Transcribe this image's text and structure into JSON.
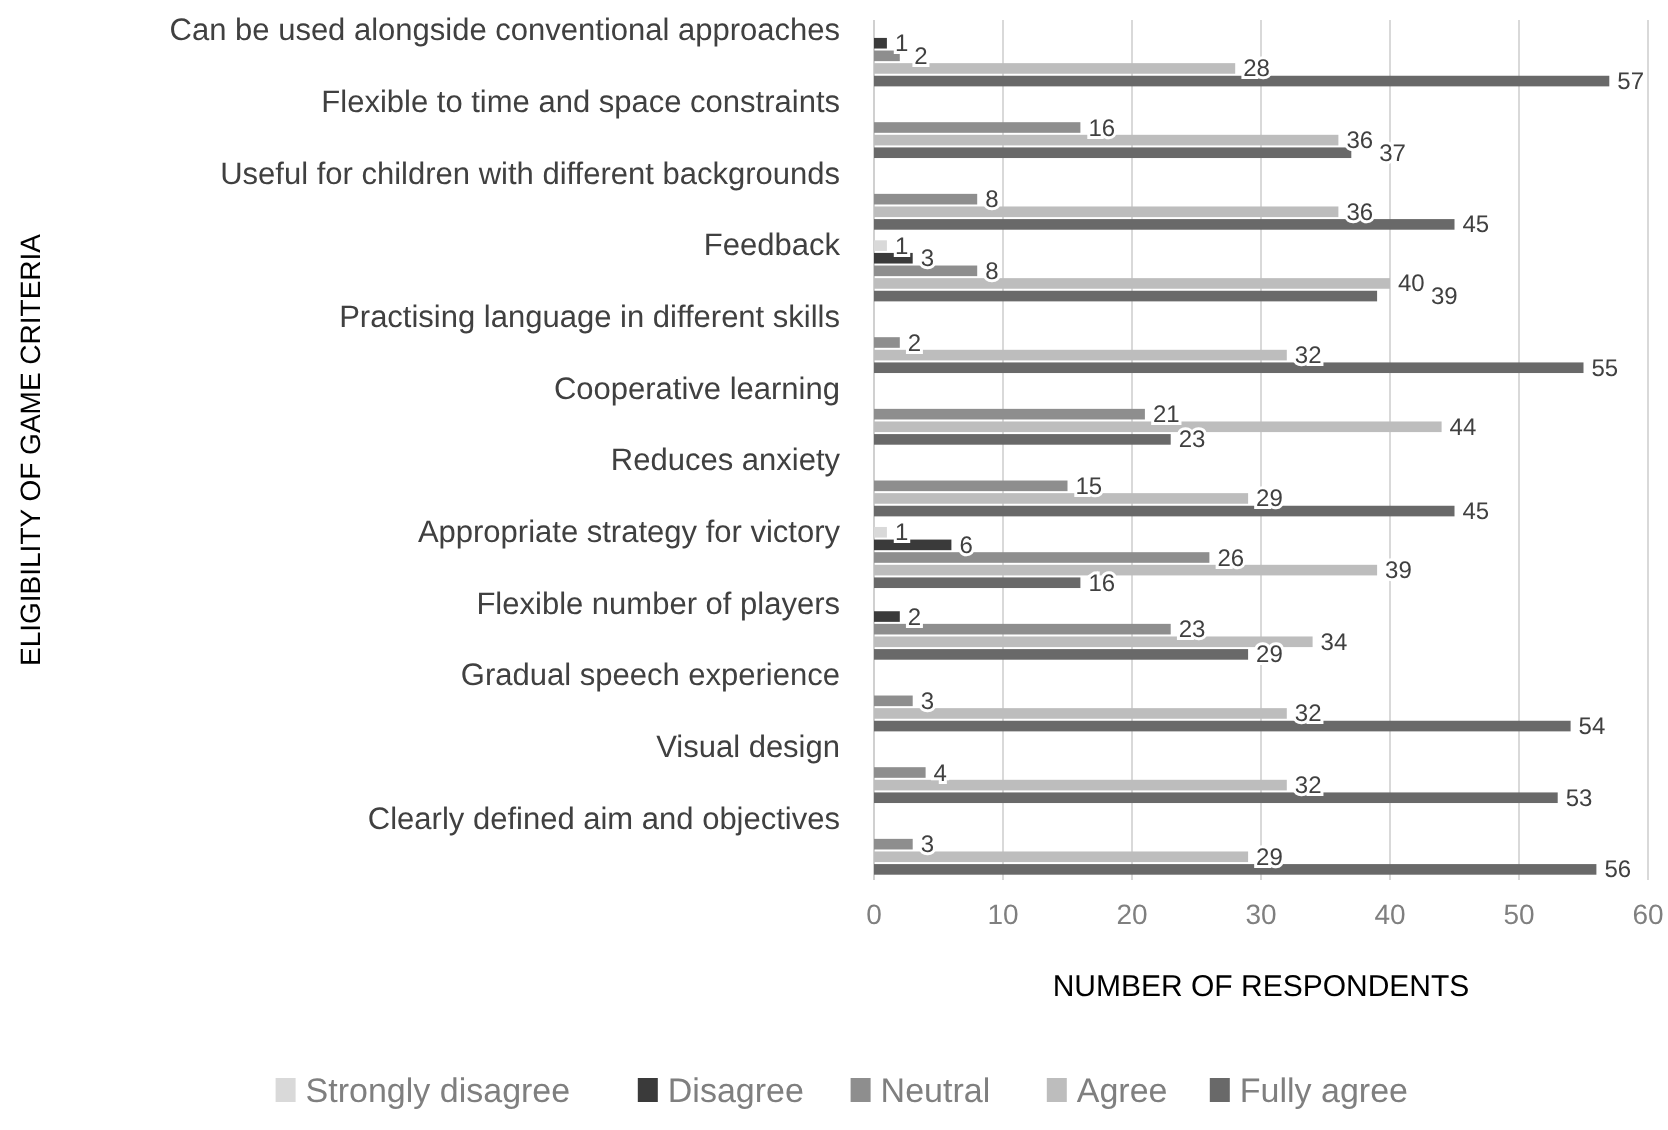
{
  "chart_data": {
    "type": "bar",
    "orientation": "horizontal",
    "xlabel": "NUMBER OF RESPONDENTS",
    "ylabel": "ELIGIBILITY OF GAME CRITERIA",
    "categories": [
      "Can be used alongside conventional approaches",
      "Flexible to time and space constraints",
      "Useful for children with different backgrounds",
      "Feedback",
      "Practising language in different skills",
      "Cooperative learning",
      "Reduces anxiety",
      "Appropriate strategy for victory",
      "Flexible number of players",
      "Gradual speech experience",
      "Visual design",
      "Clearly defined aim and objectives"
    ],
    "series": [
      {
        "name": "Strongly disagree",
        "color": "#d9d9d9",
        "values": [
          null,
          null,
          null,
          1,
          null,
          null,
          null,
          1,
          null,
          null,
          null,
          null
        ]
      },
      {
        "name": "Disagree",
        "color": "#3a3a3a",
        "values": [
          1,
          null,
          null,
          3,
          null,
          null,
          null,
          6,
          2,
          null,
          null,
          null
        ]
      },
      {
        "name": "Neutral",
        "color": "#8e8e8e",
        "values": [
          2,
          16,
          8,
          8,
          2,
          21,
          15,
          26,
          23,
          3,
          4,
          3
        ]
      },
      {
        "name": "Agree",
        "color": "#bdbdbd",
        "values": [
          28,
          36,
          36,
          40,
          32,
          44,
          29,
          39,
          34,
          32,
          32,
          29
        ]
      },
      {
        "name": "Fully agree",
        "color": "#696969",
        "values": [
          57,
          37,
          45,
          39,
          55,
          23,
          45,
          16,
          29,
          54,
          53,
          56
        ]
      }
    ],
    "xlim": [
      0,
      60
    ],
    "xticks": [
      0,
      10,
      20,
      30,
      40,
      50,
      60
    ],
    "grid": "x",
    "legend": "bottom",
    "data_labels": true
  }
}
